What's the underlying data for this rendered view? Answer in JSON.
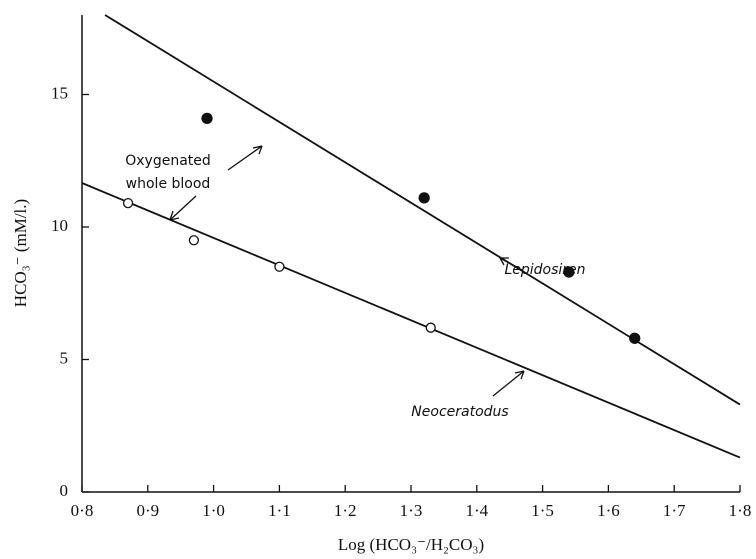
{
  "chart_data": {
    "type": "scatter",
    "xlabel": "Log (HCO₃⁻/H₂CO₃)",
    "ylabel": "HCO₃⁻ (mM/l.)",
    "xlim": [
      0.8,
      1.8
    ],
    "ylim": [
      0,
      18
    ],
    "xticks": [
      {
        "value": 0.8,
        "label": "0·8"
      },
      {
        "value": 0.9,
        "label": "0·9"
      },
      {
        "value": 1.0,
        "label": "1·0"
      },
      {
        "value": 1.1,
        "label": "1·1"
      },
      {
        "value": 1.2,
        "label": "1·2"
      },
      {
        "value": 1.3,
        "label": "1·3"
      },
      {
        "value": 1.4,
        "label": "1·4"
      },
      {
        "value": 1.5,
        "label": "1·5"
      },
      {
        "value": 1.6,
        "label": "1·6"
      },
      {
        "value": 1.7,
        "label": "1·7"
      },
      {
        "value": 1.8,
        "label": "1·8"
      }
    ],
    "yticks": [
      0,
      5,
      10,
      15
    ],
    "annotations": [
      "Oxygenated",
      "whole blood"
    ],
    "series": [
      {
        "name": "Lepidosiren",
        "color": "#111111",
        "filled": true,
        "x": [
          0.99,
          1.32,
          1.54,
          1.64
        ],
        "values": [
          14.1,
          11.1,
          8.3,
          5.8
        ],
        "fit_x": [
          0.835,
          1.8
        ],
        "fit_values": [
          18,
          3.3
        ]
      },
      {
        "name": "Neoceratodus",
        "color": "#111111",
        "filled": false,
        "x": [
          0.87,
          0.97,
          1.1,
          1.33
        ],
        "values": [
          10.9,
          9.5,
          8.5,
          6.2
        ],
        "fit_x": [
          0.8,
          1.8
        ],
        "fit_values": [
          11.66,
          1.3
        ]
      }
    ]
  }
}
